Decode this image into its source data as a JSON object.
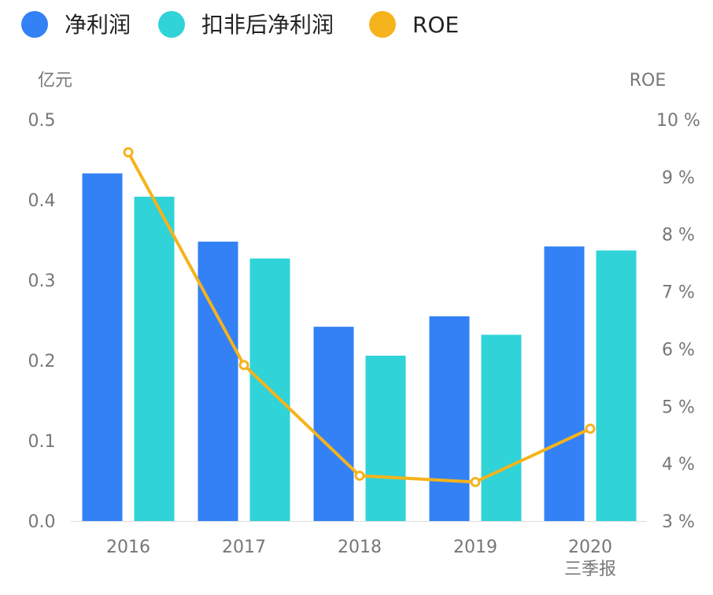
{
  "chart_data": {
    "type": "bar",
    "categories": [
      "2016",
      "2017",
      "2018",
      "2019",
      "2020"
    ],
    "category_sublabels": [
      "",
      "",
      "",
      "",
      "三季报"
    ],
    "left_axis": {
      "unit": "亿元",
      "ylim": [
        0,
        0.5
      ],
      "ticks": [
        "0.0",
        "0.1",
        "0.2",
        "0.3",
        "0.4",
        "0.5"
      ],
      "tick_values": [
        0,
        0.1,
        0.2,
        0.3,
        0.4,
        0.5
      ]
    },
    "right_axis": {
      "unit": "ROE",
      "ylim": [
        3,
        10
      ],
      "ticks": [
        "3 %",
        "4 %",
        "5 %",
        "6 %",
        "7 %",
        "8 %",
        "9 %",
        "10 %"
      ],
      "tick_values": [
        3,
        4,
        5,
        6,
        7,
        8,
        9,
        10
      ]
    },
    "series": [
      {
        "name": "净利润",
        "type": "bar",
        "axis": "left",
        "color": "#3381F5",
        "values": [
          0.433,
          0.348,
          0.242,
          0.255,
          0.342
        ]
      },
      {
        "name": "扣非后净利润",
        "type": "bar",
        "axis": "left",
        "color": "#2FD3D8",
        "values": [
          0.404,
          0.327,
          0.206,
          0.232,
          0.337
        ]
      },
      {
        "name": "ROE",
        "type": "line",
        "axis": "right",
        "color": "#F5B31C",
        "values": [
          9.43,
          5.72,
          3.79,
          3.68,
          4.61
        ]
      }
    ],
    "legend_position": "top-left",
    "grid": false
  }
}
